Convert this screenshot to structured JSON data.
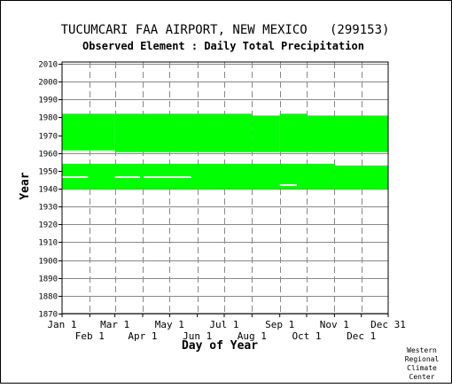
{
  "chart_data": {
    "type": "bar",
    "title": "TUCUMCARI FAA AIRPORT, NEW MEXICO   (299153)",
    "subtitle": "Observed Element : Daily Total Precipitation",
    "xlabel": "Day of Year",
    "ylabel": "Year",
    "credit": [
      "Western",
      "Regional",
      "Climate",
      "Center"
    ],
    "x_ticks_top": [
      "Jan 1",
      "Mar 1",
      "May 1",
      "Jul 1",
      "Sep 1",
      "Nov 1",
      "Dec 31"
    ],
    "x_ticks_bottom": [
      "Feb 1",
      "Apr 1",
      "Jun 1",
      "Aug 1",
      "Oct 1",
      "Dec 1"
    ],
    "x_tick_days_top": [
      1,
      60,
      121,
      182,
      244,
      305,
      365
    ],
    "x_tick_days_bottom": [
      32,
      91,
      152,
      213,
      274,
      335
    ],
    "xlim": [
      1,
      365
    ],
    "ylim": [
      1870,
      2011
    ],
    "y_ticks": [
      2010,
      2000,
      1990,
      1980,
      1970,
      1960,
      1950,
      1940,
      1930,
      1920,
      1910,
      1900,
      1890,
      1880,
      1870
    ],
    "grid": true,
    "series": [
      {
        "color": "#00ff00",
        "values": [
          {
            "day_start": 1,
            "day_end": 60,
            "year_start": 1961.5,
            "year_end": 1982
          },
          {
            "day_start": 60,
            "day_end": 213,
            "year_start": 1960.5,
            "year_end": 1982
          },
          {
            "day_start": 213,
            "day_end": 244,
            "year_start": 1960.5,
            "year_end": 1981
          },
          {
            "day_start": 244,
            "day_end": 274,
            "year_start": 1960.5,
            "year_end": 1982
          },
          {
            "day_start": 274,
            "day_end": 365,
            "year_start": 1960.5,
            "year_end": 1981
          },
          {
            "day_start": 1,
            "day_end": 305,
            "year_start": 1940,
            "year_end": 1954
          },
          {
            "day_start": 305,
            "day_end": 365,
            "year_start": 1940,
            "year_end": 1953
          }
        ]
      }
    ],
    "missing": [
      {
        "day_start": 1,
        "day_end": 30,
        "year": 1946.5
      },
      {
        "day_start": 60,
        "day_end": 88,
        "year": 1946.5
      },
      {
        "day_start": 92,
        "day_end": 145,
        "year": 1946.5
      },
      {
        "day_start": 244,
        "day_end": 263,
        "year": 1942
      }
    ]
  }
}
